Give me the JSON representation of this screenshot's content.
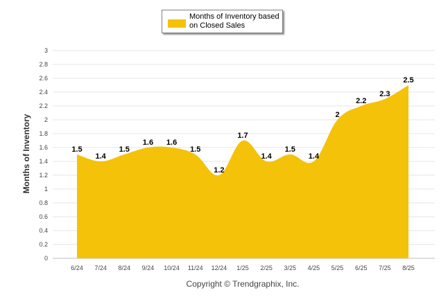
{
  "chart_data": {
    "type": "area",
    "series": [
      {
        "name": "Months of Inventory based on Closed Sales",
        "color": "#f5c20a",
        "values": [
          1.5,
          1.4,
          1.5,
          1.6,
          1.6,
          1.5,
          1.2,
          1.7,
          1.4,
          1.5,
          1.4,
          2,
          2.2,
          2.3,
          2.5
        ]
      }
    ],
    "categories": [
      "6/24",
      "7/24",
      "8/24",
      "9/24",
      "10/24",
      "11/24",
      "12/24",
      "1/25",
      "2/25",
      "3/25",
      "4/25",
      "5/25",
      "6/25",
      "7/25",
      "8/25"
    ],
    "data_labels": [
      "1.5",
      "1.4",
      "1.5",
      "1.6",
      "1.6",
      "1.5",
      "1.2",
      "1.7",
      "1.4",
      "1.5",
      "1.4",
      "2",
      "2.2",
      "2.3",
      "2.5"
    ],
    "ylabel": "Months of Inventory",
    "xlabel": "",
    "ylim": [
      0,
      3
    ],
    "yticks": [
      "0",
      "0.2",
      "0.4",
      "0.6",
      "0.8",
      "1",
      "1.2",
      "1.4",
      "1.6",
      "1.8",
      "2",
      "2.2",
      "2.4",
      "2.6",
      "2.8",
      "3"
    ],
    "grid": true,
    "legend_position": "top-center"
  },
  "legend": {
    "label": "Months of Inventory based on Closed Sales",
    "swatch_color": "#f5c20a"
  },
  "footer": {
    "copyright": "Copyright © Trendgraphix, Inc."
  }
}
